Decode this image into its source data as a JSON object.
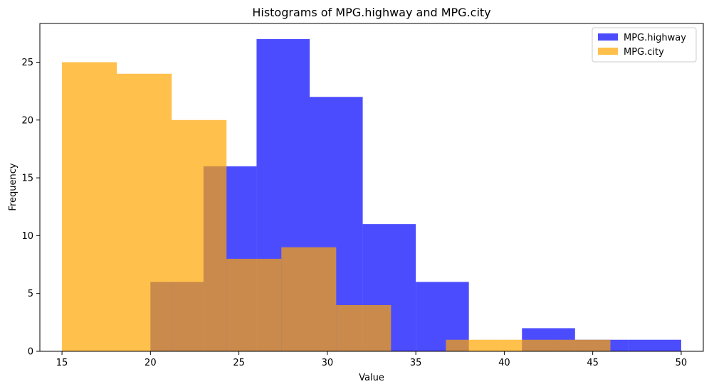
{
  "chart_data": {
    "type": "bar",
    "title": "Histograms of MPG.highway and MPG.city",
    "xlabel": "Value",
    "ylabel": "Frequency",
    "xlim": [
      13.75,
      51.25
    ],
    "ylim": [
      0,
      28.35
    ],
    "xticks": [
      15,
      20,
      25,
      30,
      35,
      40,
      45,
      50
    ],
    "yticks": [
      0,
      5,
      10,
      15,
      20,
      25
    ],
    "grid": false,
    "legend_position": "top-right",
    "series": [
      {
        "name": "MPG.highway",
        "color": "#0000ff",
        "opacity": 0.7,
        "bin_edges": [
          20,
          23,
          26,
          29,
          32,
          35,
          38,
          41,
          44,
          47,
          50
        ],
        "counts": [
          6,
          16,
          27,
          22,
          11,
          6,
          0,
          2,
          1,
          1
        ]
      },
      {
        "name": "MPG.city",
        "color": "#ffa500",
        "opacity": 0.7,
        "bin_edges": [
          15,
          18.1,
          21.2,
          24.3,
          27.4,
          30.5,
          33.6,
          36.7,
          39.8,
          42.9,
          46
        ],
        "counts": [
          25,
          24,
          20,
          8,
          9,
          4,
          0,
          1,
          1,
          1
        ]
      }
    ]
  }
}
